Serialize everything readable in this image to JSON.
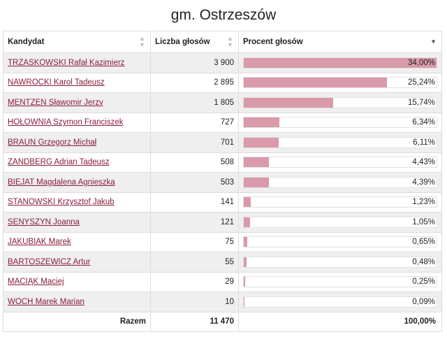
{
  "title": "gm. Ostrzeszów",
  "table": {
    "headers": {
      "candidate": "Kandydat",
      "votes": "Liczba głosów",
      "percent": "Procent głosów"
    },
    "rows": [
      {
        "name": "TRZASKOWSKI Rafał Kazimierz",
        "votes": "3 900",
        "percent_label": "34,00%",
        "percent": 34.0
      },
      {
        "name": "NAWROCKI Karol Tadeusz",
        "votes": "2 895",
        "percent_label": "25,24%",
        "percent": 25.24
      },
      {
        "name": "MENTZEN Sławomir Jerzy",
        "votes": "1 805",
        "percent_label": "15,74%",
        "percent": 15.74
      },
      {
        "name": "HOŁOWNIA Szymon Franciszek",
        "votes": "727",
        "percent_label": "6,34%",
        "percent": 6.34
      },
      {
        "name": "BRAUN Grzegorz Michał",
        "votes": "701",
        "percent_label": "6,11%",
        "percent": 6.11
      },
      {
        "name": "ZANDBERG Adrian Tadeusz",
        "votes": "508",
        "percent_label": "4,43%",
        "percent": 4.43
      },
      {
        "name": "BIEJAT Magdalena Agnieszka",
        "votes": "503",
        "percent_label": "4,39%",
        "percent": 4.39
      },
      {
        "name": "STANOWSKI Krzysztof Jakub",
        "votes": "141",
        "percent_label": "1,23%",
        "percent": 1.23
      },
      {
        "name": "SENYSZYN Joanna",
        "votes": "121",
        "percent_label": "1,05%",
        "percent": 1.05
      },
      {
        "name": "JAKUBIAK Marek",
        "votes": "75",
        "percent_label": "0,65%",
        "percent": 0.65
      },
      {
        "name": "BARTOSZEWICZ Artur",
        "votes": "55",
        "percent_label": "0,48%",
        "percent": 0.48
      },
      {
        "name": "MACIĄK Maciej",
        "votes": "29",
        "percent_label": "0,25%",
        "percent": 0.25
      },
      {
        "name": "WOCH Marek Marian",
        "votes": "10",
        "percent_label": "0,09%",
        "percent": 0.09
      }
    ],
    "bar_scale_max_percent": 34.0,
    "footer": {
      "label": "Razem",
      "votes": "11 470",
      "percent": "100,00%"
    }
  },
  "colors": {
    "bar_fill": "#d99aaa",
    "link": "#8a1c3a",
    "row_stripe": "#efefef"
  },
  "icons": {
    "sort_neutral": "sort-arrows-icon",
    "sort_desc": "sort-down-icon"
  }
}
